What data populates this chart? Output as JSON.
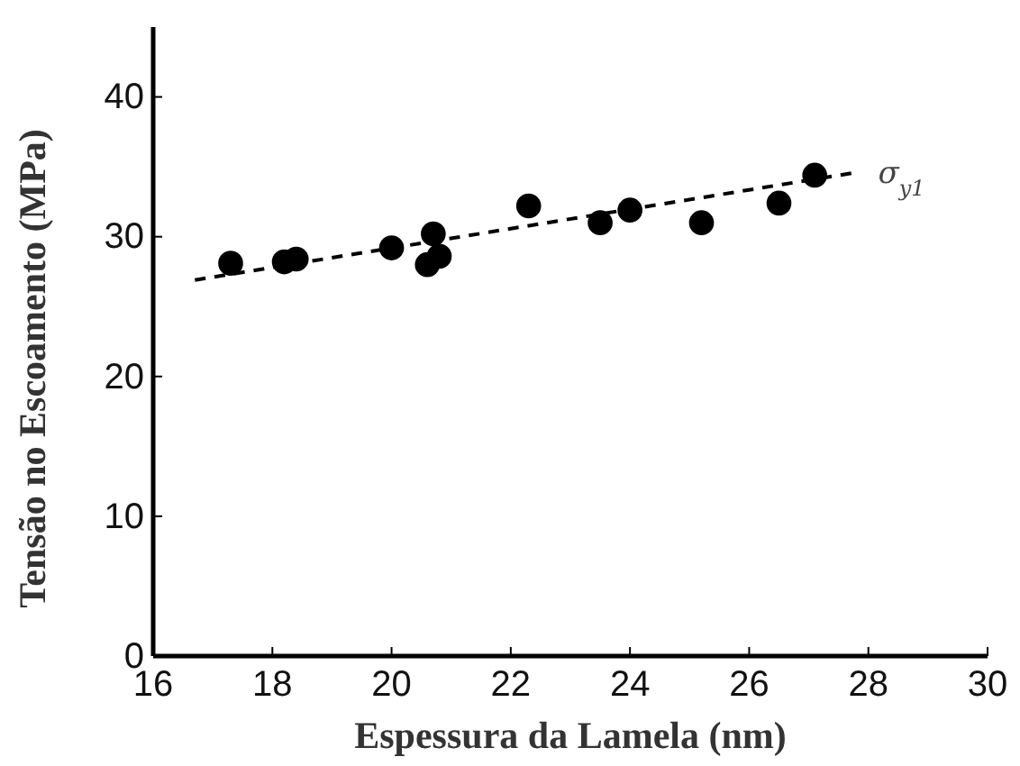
{
  "chart_data": {
    "type": "scatter",
    "xlabel": "Espessura da Lamela (nm)",
    "ylabel": "Tensão no Escoamento (MPa)",
    "xlim": [
      16,
      30
    ],
    "xticks": [
      16,
      18,
      20,
      22,
      24,
      26,
      28,
      30
    ],
    "ylim": [
      0,
      45
    ],
    "yticks": [
      0,
      10,
      20,
      30,
      40
    ],
    "grid": false,
    "series": [
      {
        "color": "#000000",
        "marker": "circle",
        "x": [
          17.3,
          18.2,
          18.4,
          20,
          20.6,
          20.7,
          20.8,
          22.3,
          23.5,
          24,
          25.2,
          26.5,
          27.1
        ],
        "values": [
          28.1,
          28.2,
          28.4,
          29.2,
          28,
          30.2,
          28.6,
          32.2,
          31,
          31.9,
          31,
          32.4,
          34.4
        ]
      },
      {
        "type": "line",
        "color": "#000000",
        "line_style": "dashed",
        "marker": "none",
        "x": [
          16.7,
          27.8
        ],
        "values": [
          26.9,
          34.6
        ]
      }
    ],
    "annotations": [
      {
        "text": "σ$_{y1}$",
        "x": 27.8,
        "y": 34.6
      }
    ]
  }
}
